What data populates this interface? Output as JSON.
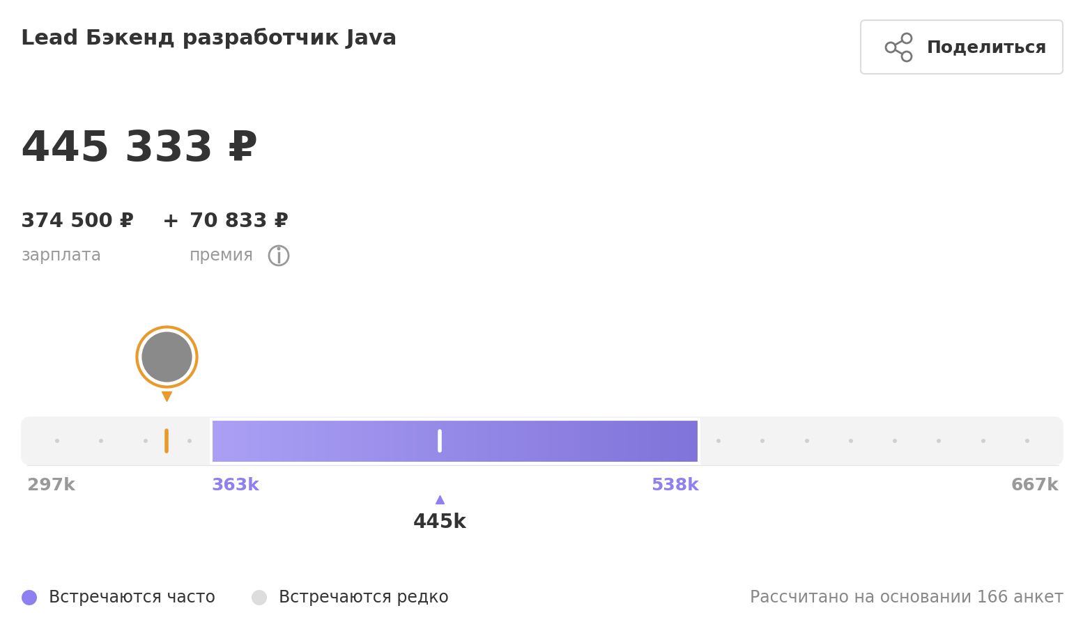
{
  "header": {
    "title": "Lead Бэкенд разработчик Java",
    "share_button": "Поделиться"
  },
  "salary": {
    "total": "445 333 ₽",
    "operator": "+",
    "parts": [
      {
        "amount": "374 500 ₽",
        "label": "зарплата"
      },
      {
        "amount": "70 833 ₽",
        "label": "премия"
      }
    ]
  },
  "chart_data": {
    "type": "range",
    "xlim": [
      297,
      667
    ],
    "xticks": [
      {
        "value": 297,
        "label": "297k"
      },
      {
        "value": 363,
        "label": "363k"
      },
      {
        "value": 538,
        "label": "538k"
      },
      {
        "value": 667,
        "label": "667k"
      }
    ],
    "range": [
      363,
      538
    ],
    "median": {
      "value": 445,
      "label": "445k"
    },
    "marker": 347,
    "color": "#8f80f2"
  },
  "legend": [
    {
      "name": "Встречаются часто",
      "color": "#8f80f2"
    },
    {
      "name": "Встречаются редко",
      "color": "#dddddd"
    }
  ],
  "footnote": "Рассчитано на основании 166 анкет"
}
